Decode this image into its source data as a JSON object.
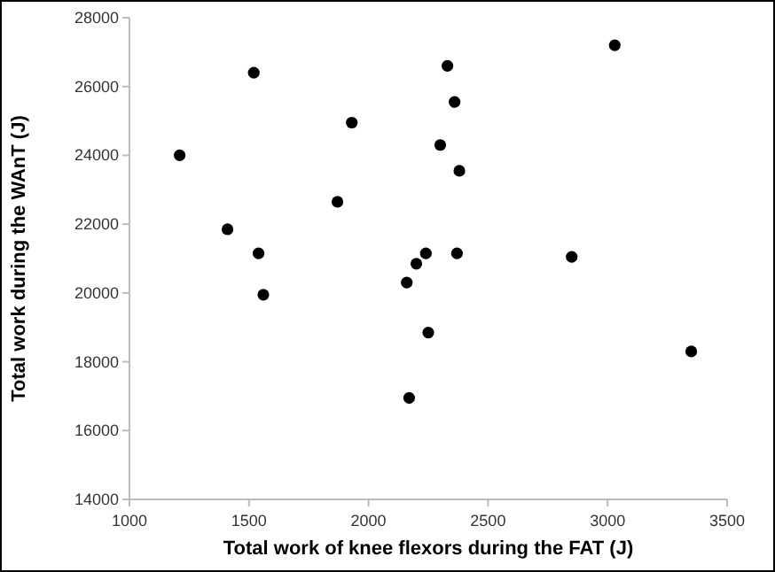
{
  "chart_data": {
    "type": "scatter",
    "xlabel": "Total work of knee flexors during the FAT (J)",
    "ylabel": "Total work during the WAnT (J)",
    "x": [
      1210,
      1410,
      1520,
      1540,
      1560,
      1870,
      1930,
      2160,
      2170,
      2200,
      2240,
      2250,
      2300,
      2330,
      2360,
      2370,
      2380,
      2850,
      3030,
      3350
    ],
    "series": [
      {
        "color": "#000000",
        "values": [
          24000,
          21850,
          26400,
          21150,
          19950,
          22650,
          24950,
          20300,
          16950,
          20850,
          21150,
          18850,
          24300,
          26600,
          25550,
          21150,
          23550,
          21050,
          27200,
          18300
        ]
      }
    ],
    "xlim": [
      1000,
      3500
    ],
    "xticks": [
      1000,
      1500,
      2000,
      2500,
      3000,
      3500
    ],
    "ylim": [
      14000,
      28000
    ],
    "yticks": [
      14000,
      16000,
      18000,
      20000,
      22000,
      24000,
      26000,
      28000
    ],
    "marker": "circle",
    "grid": false
  }
}
